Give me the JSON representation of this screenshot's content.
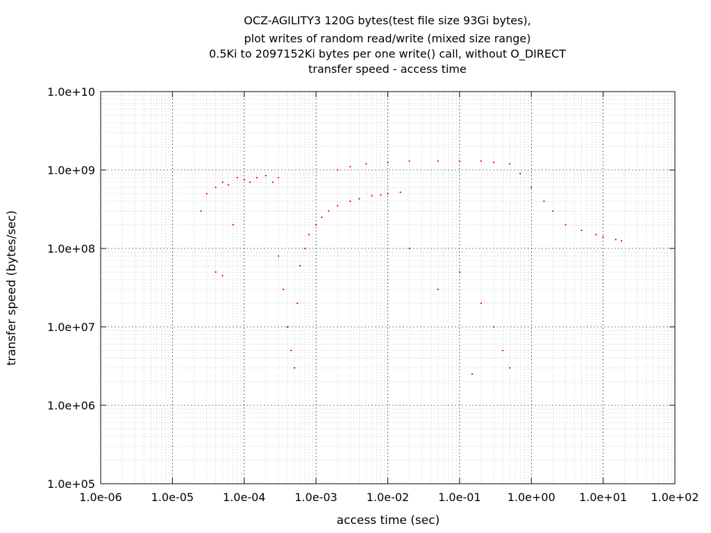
{
  "chart_data": {
    "type": "scatter",
    "title_lines": [
      "OCZ-AGILITY3 120G bytes(test file size 93Gi bytes),",
      "plot writes of random read/write (mixed size range)",
      "0.5Ki to 2097152Ki bytes per one write() call, without O_DIRECT",
      "transfer speed - access time"
    ],
    "xlabel": "access time (sec)",
    "ylabel": "transfer speed (bytes/sec)",
    "x_scale": "log",
    "y_scale": "log",
    "xlim": [
      1e-06,
      100
    ],
    "ylim": [
      100000,
      10000000000
    ],
    "x_ticks": [
      {
        "value": 1e-06,
        "label": "1.0e-06"
      },
      {
        "value": 1e-05,
        "label": "1.0e-05"
      },
      {
        "value": 0.0001,
        "label": "1.0e-04"
      },
      {
        "value": 0.001,
        "label": "1.0e-03"
      },
      {
        "value": 0.01,
        "label": "1.0e-02"
      },
      {
        "value": 0.1,
        "label": "1.0e-01"
      },
      {
        "value": 1,
        "label": "1.0e+00"
      },
      {
        "value": 10,
        "label": "1.0e+01"
      },
      {
        "value": 100,
        "label": "1.0e+02"
      }
    ],
    "y_ticks": [
      {
        "value": 100000,
        "label": "1.0e+05"
      },
      {
        "value": 1000000,
        "label": "1.0e+06"
      },
      {
        "value": 10000000,
        "label": "1.0e+07"
      },
      {
        "value": 100000000,
        "label": "1.0e+08"
      },
      {
        "value": 1000000000,
        "label": "1.0e+09"
      },
      {
        "value": 10000000000,
        "label": "1.0e+10"
      }
    ],
    "grid": true,
    "legend": "none",
    "series": [
      {
        "color": "#ff0000",
        "points": [
          [
            3e-05,
            500000000
          ],
          [
            4e-05,
            600000000
          ],
          [
            5e-05,
            700000000
          ],
          [
            6e-05,
            650000000
          ],
          [
            8e-05,
            800000000
          ],
          [
            0.0001,
            750000000
          ],
          [
            0.00012,
            700000000
          ],
          [
            0.00015,
            800000000
          ],
          [
            0.0002,
            850000000
          ],
          [
            0.00025,
            700000000
          ],
          [
            0.0003,
            800000000
          ],
          [
            4e-05,
            50000000
          ],
          [
            5e-05,
            45000000
          ],
          [
            2.5e-05,
            300000000
          ],
          [
            7e-05,
            200000000
          ],
          [
            0.0003,
            80000000
          ],
          [
            0.00035,
            30000000
          ],
          [
            0.0004,
            10000000
          ],
          [
            0.00045,
            5000000
          ],
          [
            0.0005,
            3000000
          ],
          [
            0.00055,
            20000000
          ],
          [
            0.0006,
            60000000
          ],
          [
            0.0007,
            100000000
          ],
          [
            0.0008,
            150000000
          ],
          [
            0.001,
            200000000
          ],
          [
            0.0012,
            250000000
          ],
          [
            0.0015,
            300000000
          ],
          [
            0.002,
            350000000
          ],
          [
            0.003,
            400000000
          ],
          [
            0.004,
            430000000
          ],
          [
            0.006,
            470000000
          ],
          [
            0.008,
            480000000
          ],
          [
            0.01,
            500000000
          ],
          [
            0.015,
            520000000
          ],
          [
            0.002,
            1000000000
          ],
          [
            0.003,
            1100000000
          ],
          [
            0.005,
            1200000000
          ],
          [
            0.01,
            1250000000
          ],
          [
            0.02,
            1300000000
          ],
          [
            0.05,
            1300000000
          ],
          [
            0.1,
            1300000000
          ],
          [
            0.2,
            1300000000
          ],
          [
            0.3,
            1250000000
          ],
          [
            0.5,
            1200000000
          ],
          [
            0.7,
            900000000
          ],
          [
            1,
            600000000
          ],
          [
            1.5,
            400000000
          ],
          [
            2,
            300000000
          ],
          [
            3,
            200000000
          ],
          [
            5,
            170000000
          ],
          [
            8,
            150000000
          ],
          [
            10,
            140000000
          ],
          [
            15,
            130000000
          ],
          [
            18,
            125000000
          ],
          [
            0.02,
            100000000
          ],
          [
            0.05,
            30000000
          ],
          [
            0.1,
            50000000
          ],
          [
            0.2,
            20000000
          ],
          [
            0.3,
            10000000
          ],
          [
            0.4,
            5000000
          ],
          [
            0.15,
            2500000
          ],
          [
            0.5,
            3000000
          ]
        ]
      }
    ]
  }
}
